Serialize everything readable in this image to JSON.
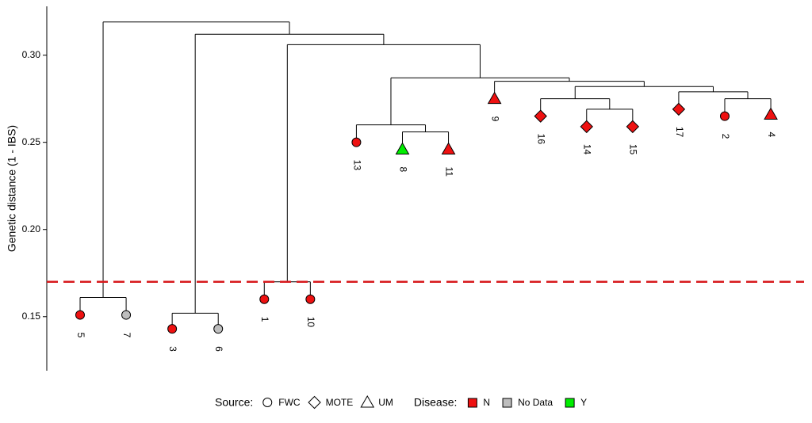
{
  "chart_data": {
    "type": "dendrogram",
    "y_label": "Genetic distance (1 - IBS)",
    "ylim": [
      0.119,
      0.328
    ],
    "yticks": [
      0.15,
      {
        "value": 0.2,
        "label": "0.20"
      },
      0.25,
      {
        "value": 0.3,
        "label": "0.30"
      }
    ],
    "hline": {
      "value": 0.17,
      "color": "#d7191c"
    },
    "legend": {
      "source": {
        "title": "Source:",
        "items": [
          {
            "label": "FWC",
            "shape": "circle"
          },
          {
            "label": "MOTE",
            "shape": "diamond"
          },
          {
            "label": "UM",
            "shape": "triangle"
          }
        ]
      },
      "disease": {
        "title": "Disease:",
        "items": [
          {
            "label": "N",
            "color": "#ee1111"
          },
          {
            "label": "No Data",
            "color": "#bebebe"
          },
          {
            "label": "Y",
            "color": "#00ee00"
          }
        ]
      }
    },
    "tree": {
      "height": 0.319,
      "children": [
        {
          "height": 0.161,
          "children": [
            {
              "label": "5",
              "height": 0.151,
              "source": "FWC",
              "disease": "N"
            },
            {
              "label": "7",
              "height": 0.151,
              "source": "FWC",
              "disease": "No Data"
            }
          ]
        },
        {
          "height": 0.312,
          "children": [
            {
              "height": 0.152,
              "children": [
                {
                  "label": "3",
                  "height": 0.143,
                  "source": "FWC",
                  "disease": "N"
                },
                {
                  "label": "6",
                  "height": 0.143,
                  "source": "FWC",
                  "disease": "No Data"
                }
              ]
            },
            {
              "height": 0.306,
              "children": [
                {
                  "height": 0.17,
                  "children": [
                    {
                      "label": "1",
                      "height": 0.16,
                      "source": "FWC",
                      "disease": "N"
                    },
                    {
                      "label": "10",
                      "height": 0.16,
                      "source": "FWC",
                      "disease": "N"
                    }
                  ]
                },
                {
                  "height": 0.287,
                  "children": [
                    {
                      "height": 0.26,
                      "children": [
                        {
                          "label": "13",
                          "height": 0.25,
                          "source": "FWC",
                          "disease": "N"
                        },
                        {
                          "height": 0.256,
                          "children": [
                            {
                              "label": "8",
                              "height": 0.246,
                              "source": "UM",
                              "disease": "Y"
                            },
                            {
                              "label": "11",
                              "height": 0.246,
                              "source": "UM",
                              "disease": "N"
                            }
                          ]
                        }
                      ]
                    },
                    {
                      "height": 0.285,
                      "children": [
                        {
                          "label": "9",
                          "height": 0.275,
                          "source": "UM",
                          "disease": "N"
                        },
                        {
                          "height": 0.282,
                          "children": [
                            {
                              "height": 0.275,
                              "children": [
                                {
                                  "label": "16",
                                  "height": 0.265,
                                  "source": "MOTE",
                                  "disease": "N"
                                },
                                {
                                  "height": 0.269,
                                  "children": [
                                    {
                                      "label": "14",
                                      "height": 0.259,
                                      "source": "MOTE",
                                      "disease": "N"
                                    },
                                    {
                                      "label": "15",
                                      "height": 0.259,
                                      "source": "MOTE",
                                      "disease": "N"
                                    }
                                  ]
                                }
                              ]
                            },
                            {
                              "height": 0.279,
                              "children": [
                                {
                                  "label": "17",
                                  "height": 0.269,
                                  "source": "MOTE",
                                  "disease": "N"
                                },
                                {
                                  "height": 0.275,
                                  "children": [
                                    {
                                      "label": "2",
                                      "height": 0.265,
                                      "source": "FWC",
                                      "disease": "N"
                                    },
                                    {
                                      "label": "4",
                                      "height": 0.266,
                                      "source": "UM",
                                      "disease": "N"
                                    }
                                  ]
                                }
                              ]
                            }
                          ]
                        }
                      ]
                    }
                  ]
                }
              ]
            }
          ]
        }
      ]
    }
  }
}
